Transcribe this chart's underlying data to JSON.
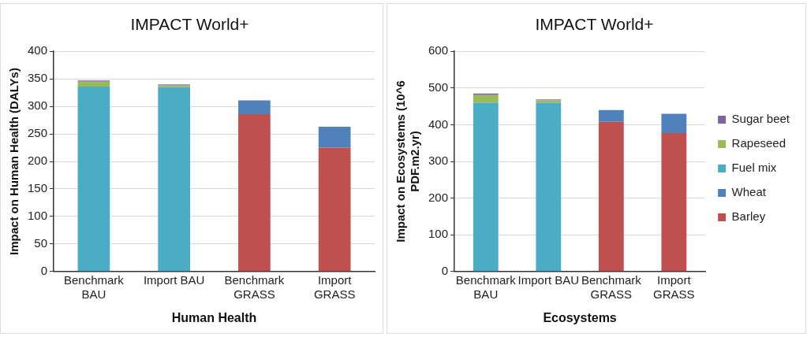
{
  "chart_data": [
    {
      "type": "bar",
      "title": "IMPACT World+",
      "xlabel": "Human Health",
      "ylabel": "Impact on Human Health (DALYs)",
      "categories": [
        "Benchmark BAU",
        "Import BAU",
        "Benchmark GRASS",
        "Import GRASS"
      ],
      "stacked": true,
      "ylim": [
        0,
        400
      ],
      "yticks": [
        0,
        50,
        100,
        150,
        200,
        250,
        300,
        350,
        400
      ],
      "grid": "y",
      "legend": false,
      "series": [
        {
          "color": "#c0504d",
          "values": [
            0,
            0,
            286,
            225
          ]
        },
        {
          "color": "#4f81bd",
          "values": [
            0,
            0,
            25,
            38
          ]
        },
        {
          "color": "#4bacc6",
          "values": [
            336,
            335,
            0,
            0
          ]
        },
        {
          "color": "#9bbb59",
          "values": [
            9,
            3,
            0,
            0
          ]
        },
        {
          "color": "#8064a2",
          "values": [
            2,
            2,
            0,
            0
          ]
        }
      ]
    },
    {
      "type": "bar",
      "title": "IMPACT World+",
      "xlabel": "Ecosystems",
      "ylabel": "Impact on Ecosystems (10^6 PDF.m2.yr)",
      "categories": [
        "Benchmark BAU",
        "Import BAU",
        "Benchmark GRASS",
        "Import GRASS"
      ],
      "stacked": true,
      "ylim": [
        0,
        600
      ],
      "yticks": [
        0,
        100,
        200,
        300,
        400,
        500,
        600
      ],
      "grid": "y",
      "legend": "right",
      "series": [
        {
          "name": "Barley",
          "color": "#c0504d",
          "values": [
            0,
            0,
            408,
            377
          ]
        },
        {
          "name": "Wheat",
          "color": "#4f81bd",
          "values": [
            0,
            0,
            32,
            53
          ]
        },
        {
          "name": "Fuel mix",
          "color": "#4bacc6",
          "values": [
            460,
            460,
            0,
            0
          ]
        },
        {
          "name": "Rapeseed",
          "color": "#9bbb59",
          "values": [
            21,
            7,
            0,
            0
          ]
        },
        {
          "name": "Sugar beet",
          "color": "#8064a2",
          "values": [
            4,
            2,
            0,
            0
          ]
        }
      ]
    }
  ]
}
